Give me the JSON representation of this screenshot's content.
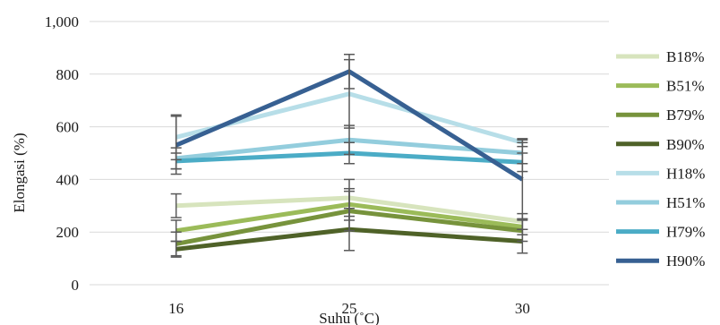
{
  "chart_data": {
    "type": "line",
    "categories": [
      "16",
      "25",
      "30"
    ],
    "xlabel": "Suhu (˚C)",
    "ylabel": "Elongasi (%)",
    "ylim": [
      0,
      1000
    ],
    "yticks": [
      0,
      200,
      400,
      600,
      800,
      1000
    ],
    "ytick_labels": [
      "0",
      "200",
      "400",
      "600",
      "800",
      "1,000"
    ],
    "grid": true,
    "legend_position": "right",
    "series": [
      {
        "name": "B18%",
        "color": "#d7e4bd",
        "values": [
          300,
          330,
          240
        ],
        "error": [
          45,
          70,
          30
        ]
      },
      {
        "name": "B51%",
        "color": "#9bbb59",
        "values": [
          205,
          305,
          220
        ],
        "error": [
          40,
          60,
          30
        ]
      },
      {
        "name": "B79%",
        "color": "#77933c",
        "values": [
          155,
          280,
          205
        ],
        "error": [
          45,
          75,
          40
        ]
      },
      {
        "name": "B90%",
        "color": "#4f6228",
        "values": [
          135,
          210,
          165
        ],
        "error": [
          30,
          80,
          45
        ]
      },
      {
        "name": "H18%",
        "color": "#b7dee8",
        "values": [
          560,
          725,
          540
        ],
        "error": [
          85,
          130,
          15
        ]
      },
      {
        "name": "H51%",
        "color": "#93cddd",
        "values": [
          480,
          550,
          500
        ],
        "error": [
          40,
          55,
          40
        ]
      },
      {
        "name": "H79%",
        "color": "#4bacc6",
        "values": [
          470,
          500,
          465
        ],
        "error": [
          30,
          40,
          35
        ]
      },
      {
        "name": "H90%",
        "color": "#376092",
        "values": [
          530,
          810,
          400
        ],
        "error": [
          110,
          65,
          150
        ]
      }
    ]
  }
}
